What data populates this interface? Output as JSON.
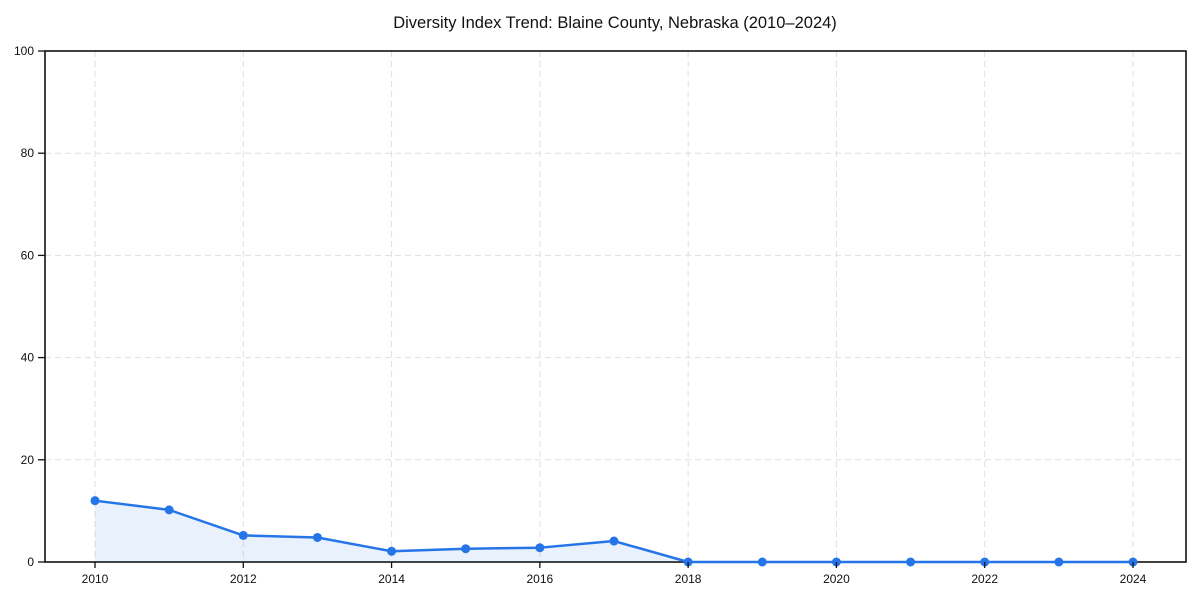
{
  "page": {
    "background": "#ffffff"
  },
  "chart_data": {
    "type": "line",
    "title": "Diversity Index Trend: Blaine County, Nebraska (2010–2024)",
    "x": [
      2010,
      2011,
      2012,
      2013,
      2014,
      2015,
      2016,
      2017,
      2018,
      2019,
      2020,
      2021,
      2022,
      2023,
      2024
    ],
    "series": [
      {
        "name": "Diversity Index",
        "values": [
          12.0,
          10.2,
          5.2,
          4.8,
          2.1,
          2.6,
          2.8,
          4.1,
          0,
          0,
          0,
          0,
          0,
          0,
          0
        ]
      }
    ],
    "xticks": [
      "2010",
      "2012",
      "2014",
      "2016",
      "2018",
      "2020",
      "2022",
      "2024"
    ],
    "yticks": [
      "0",
      "20",
      "40",
      "60",
      "80",
      "100"
    ],
    "xlabel": "",
    "ylabel": "",
    "ylim": [
      0,
      100
    ],
    "grid": true,
    "grid_style": "dashed",
    "legend_position": "none",
    "marker": "circle",
    "colors": {
      "line": "#2575e8",
      "marker": "#2575e8",
      "area_fill": "rgba(37,117,232,0.10)",
      "grid": "#dfdfdf",
      "axis_frame": "#111111",
      "text": "#111111",
      "background": "#ffffff"
    }
  }
}
